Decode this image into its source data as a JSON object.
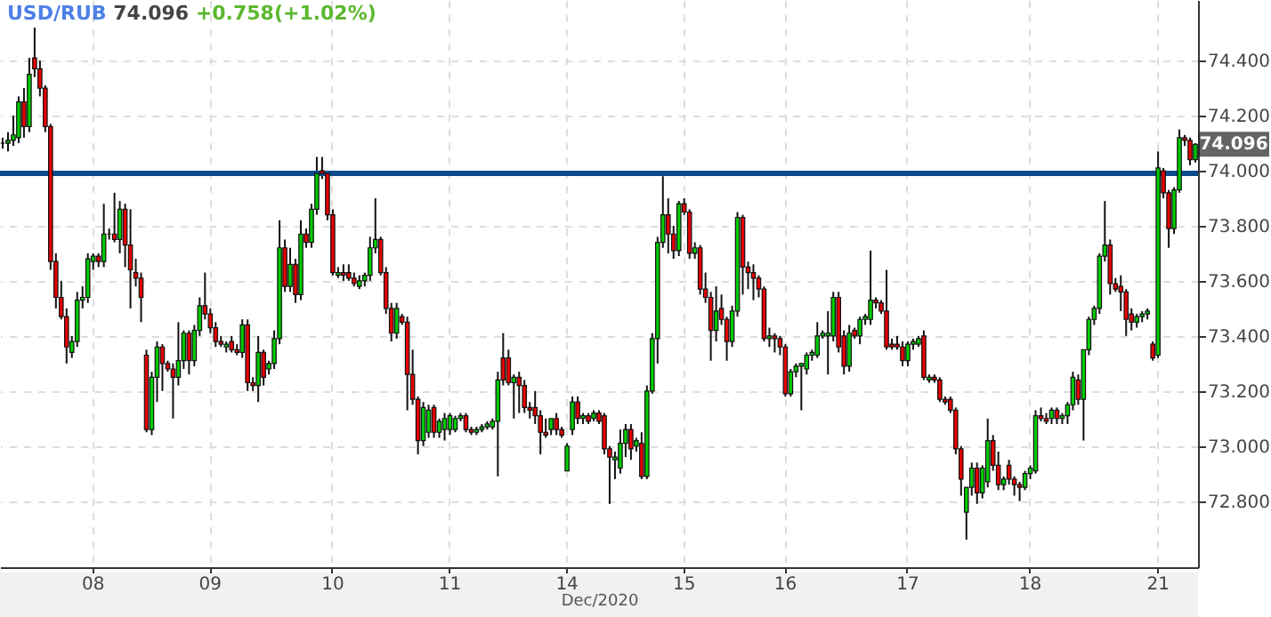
{
  "chart_data": {
    "type": "candlestick",
    "title": "USD/RUB",
    "subtitle": "74.096 +0.758(+1.02%)",
    "xlabel": "Dec/2020",
    "categories": [
      null,
      null,
      null,
      null,
      null,
      null,
      null,
      null,
      null,
      null,
      null,
      null,
      null,
      null,
      null,
      null,
      null,
      "08",
      null,
      null,
      null,
      null,
      null,
      null,
      null,
      null,
      null,
      null,
      null,
      null,
      null,
      null,
      null,
      null,
      null,
      null,
      null,
      null,
      null,
      "09",
      null,
      null,
      null,
      null,
      null,
      null,
      null,
      null,
      null,
      null,
      null,
      null,
      null,
      null,
      null,
      null,
      null,
      null,
      null,
      null,
      null,
      null,
      "10",
      null,
      null,
      null,
      null,
      null,
      null,
      null,
      null,
      null,
      null,
      null,
      null,
      null,
      null,
      null,
      null,
      null,
      null,
      null,
      null,
      null,
      "11",
      null,
      null,
      null,
      null,
      null,
      null,
      null,
      null,
      null,
      null,
      null,
      null,
      null,
      null,
      null,
      null,
      null,
      null,
      null,
      null,
      null,
      "14",
      null,
      null,
      null,
      null,
      null,
      null,
      null,
      null,
      null,
      null,
      null,
      null,
      null,
      null,
      null,
      null,
      null,
      null,
      null,
      null,
      null,
      "15",
      null,
      null,
      null,
      null,
      null,
      null,
      null,
      null,
      null,
      null,
      null,
      null,
      null,
      null,
      null,
      null,
      null,
      null,
      "16",
      null,
      null,
      null,
      null,
      null,
      null,
      null,
      null,
      null,
      null,
      null,
      null,
      null,
      null,
      null,
      null,
      null,
      null,
      null,
      null,
      null,
      null,
      "17",
      null,
      null,
      null,
      null,
      null,
      null,
      null,
      null,
      null,
      null,
      null,
      null,
      null,
      null,
      null,
      null,
      null,
      null,
      null,
      null,
      null,
      null,
      "18",
      null,
      null,
      null,
      null,
      null,
      null,
      null,
      null,
      null,
      null,
      null,
      null,
      null,
      null,
      null,
      null,
      null,
      null,
      null,
      null,
      null,
      null,
      null,
      "21",
      null,
      null,
      null,
      null,
      null,
      null,
      null
    ],
    "ohlc": [
      [
        74.1,
        74.12,
        74.08,
        74.1
      ],
      [
        74.1,
        74.14,
        74.07,
        74.11
      ],
      [
        74.11,
        74.2,
        74.09,
        74.13
      ],
      [
        74.12,
        74.27,
        74.1,
        74.25
      ],
      [
        74.25,
        74.3,
        74.12,
        74.16
      ],
      [
        74.16,
        74.41,
        74.14,
        74.35
      ],
      [
        74.41,
        74.52,
        74.34,
        74.37
      ],
      [
        74.37,
        74.4,
        74.27,
        74.3
      ],
      [
        74.3,
        74.31,
        74.14,
        74.16
      ],
      [
        74.16,
        74.17,
        73.64,
        73.67
      ],
      [
        73.67,
        73.7,
        73.5,
        73.54
      ],
      [
        73.54,
        73.6,
        73.46,
        73.47
      ],
      [
        73.47,
        73.5,
        73.3,
        73.36
      ],
      [
        73.34,
        73.4,
        73.32,
        73.38
      ],
      [
        73.38,
        73.56,
        73.36,
        73.53
      ],
      [
        73.53,
        73.58,
        73.5,
        73.54
      ],
      [
        73.54,
        73.7,
        73.52,
        73.68
      ],
      [
        73.67,
        73.7,
        73.64,
        73.69
      ],
      [
        73.69,
        73.7,
        73.65,
        73.67
      ],
      [
        73.67,
        73.88,
        73.65,
        73.77
      ],
      [
        73.77,
        73.79,
        73.75,
        73.77
      ],
      [
        73.77,
        73.92,
        73.74,
        73.75
      ],
      [
        73.75,
        73.89,
        73.7,
        73.86
      ],
      [
        73.86,
        73.88,
        73.65,
        73.73
      ],
      [
        73.73,
        73.86,
        73.5,
        73.64
      ],
      [
        73.63,
        73.68,
        73.58,
        73.61
      ],
      [
        73.61,
        73.63,
        73.45,
        73.54
      ],
      [
        73.33,
        73.35,
        73.05,
        73.06
      ],
      [
        73.06,
        73.27,
        73.04,
        73.25
      ],
      [
        73.25,
        73.38,
        73.16,
        73.36
      ],
      [
        73.36,
        73.37,
        73.2,
        73.3
      ],
      [
        73.3,
        73.31,
        73.27,
        73.28
      ],
      [
        73.28,
        73.3,
        73.1,
        73.25
      ],
      [
        73.25,
        73.45,
        73.22,
        73.31
      ],
      [
        73.31,
        73.42,
        73.28,
        73.41
      ],
      [
        73.41,
        73.42,
        73.26,
        73.31
      ],
      [
        73.31,
        73.44,
        73.29,
        73.42
      ],
      [
        73.42,
        73.54,
        73.4,
        73.51
      ],
      [
        73.51,
        73.63,
        73.46,
        73.48
      ],
      [
        73.48,
        73.5,
        73.41,
        73.43
      ],
      [
        73.43,
        73.45,
        73.36,
        73.38
      ],
      [
        73.38,
        73.4,
        73.36,
        73.37
      ],
      [
        73.36,
        73.38,
        73.34,
        73.37
      ],
      [
        73.38,
        73.4,
        73.34,
        73.35
      ],
      [
        73.35,
        73.37,
        73.33,
        73.34
      ],
      [
        73.34,
        73.46,
        73.32,
        73.44
      ],
      [
        73.44,
        73.46,
        73.2,
        73.23
      ],
      [
        73.23,
        73.25,
        73.2,
        73.22
      ],
      [
        73.22,
        73.4,
        73.16,
        73.34
      ],
      [
        73.34,
        73.35,
        73.22,
        73.25
      ],
      [
        73.28,
        73.31,
        73.26,
        73.3
      ],
      [
        73.3,
        73.42,
        73.28,
        73.39
      ],
      [
        73.39,
        73.82,
        73.37,
        73.72
      ],
      [
        73.72,
        73.75,
        73.56,
        73.58
      ],
      [
        73.58,
        73.72,
        73.56,
        73.66
      ],
      [
        73.66,
        73.68,
        73.52,
        73.55
      ],
      [
        73.55,
        73.82,
        73.53,
        73.77
      ],
      [
        73.77,
        73.79,
        73.72,
        73.74
      ],
      [
        73.74,
        73.88,
        73.72,
        73.86
      ],
      [
        73.86,
        74.05,
        73.84,
        73.99
      ],
      [
        74.0,
        74.05,
        73.97,
        73.99
      ],
      [
        73.99,
        74.0,
        73.82,
        73.84
      ],
      [
        73.84,
        73.86,
        73.62,
        73.63
      ],
      [
        73.62,
        73.65,
        73.61,
        73.63
      ],
      [
        73.63,
        73.66,
        73.6,
        73.62
      ],
      [
        73.63,
        73.66,
        73.6,
        73.61
      ],
      [
        73.61,
        73.63,
        73.58,
        73.59
      ],
      [
        73.58,
        73.62,
        73.57,
        73.6
      ],
      [
        73.6,
        73.63,
        73.58,
        73.62
      ],
      [
        73.62,
        73.76,
        73.6,
        73.72
      ],
      [
        73.72,
        73.9,
        73.7,
        73.75
      ],
      [
        73.75,
        73.76,
        73.62,
        73.63
      ],
      [
        73.63,
        73.65,
        73.48,
        73.5
      ],
      [
        73.5,
        73.52,
        73.38,
        73.41
      ],
      [
        73.41,
        73.52,
        73.39,
        73.5
      ],
      [
        73.47,
        73.48,
        73.44,
        73.45
      ],
      [
        73.45,
        73.47,
        73.13,
        73.26
      ],
      [
        73.26,
        73.35,
        73.15,
        73.17
      ],
      [
        73.17,
        73.18,
        72.97,
        73.02
      ],
      [
        73.02,
        73.16,
        73.0,
        73.14
      ],
      [
        73.05,
        73.15,
        73.03,
        73.13
      ],
      [
        73.14,
        73.15,
        73.03,
        73.05
      ],
      [
        73.05,
        73.1,
        73.03,
        73.09
      ],
      [
        73.06,
        73.12,
        73.02,
        73.1
      ],
      [
        73.06,
        73.12,
        73.04,
        73.11
      ],
      [
        73.06,
        73.11,
        73.05,
        73.1
      ],
      [
        73.1,
        73.12,
        73.09,
        73.11
      ],
      [
        73.11,
        73.12,
        73.05,
        73.06
      ],
      [
        73.06,
        73.07,
        73.04,
        73.05
      ],
      [
        73.05,
        73.07,
        73.04,
        73.06
      ],
      [
        73.06,
        73.08,
        73.05,
        73.07
      ],
      [
        73.07,
        73.09,
        73.06,
        73.08
      ],
      [
        73.07,
        73.1,
        73.06,
        73.09
      ],
      [
        73.09,
        73.27,
        72.89,
        73.24
      ],
      [
        73.32,
        73.41,
        73.22,
        73.24
      ],
      [
        73.32,
        73.35,
        73.22,
        73.23
      ],
      [
        73.23,
        73.26,
        73.1,
        73.25
      ],
      [
        73.25,
        73.27,
        73.12,
        73.22
      ],
      [
        73.22,
        73.24,
        73.12,
        73.14
      ],
      [
        73.14,
        73.16,
        73.1,
        73.13
      ],
      [
        73.14,
        73.2,
        73.08,
        73.11
      ],
      [
        73.11,
        73.13,
        72.97,
        73.05
      ],
      [
        73.05,
        73.1,
        73.03,
        73.04
      ],
      [
        73.06,
        73.1,
        73.04,
        73.1
      ],
      [
        73.1,
        73.12,
        73.04,
        73.06
      ],
      [
        73.06,
        73.07,
        73.03,
        73.04
      ],
      [
        72.91,
        73.01,
        72.91,
        73.0
      ],
      [
        73.06,
        73.18,
        73.04,
        73.16
      ],
      [
        73.16,
        73.18,
        73.08,
        73.1
      ],
      [
        73.1,
        73.12,
        73.08,
        73.11
      ],
      [
        73.11,
        73.12,
        73.08,
        73.09
      ],
      [
        73.1,
        73.13,
        73.09,
        73.12
      ],
      [
        73.12,
        73.13,
        73.08,
        73.09
      ],
      [
        73.11,
        73.12,
        72.97,
        72.99
      ],
      [
        72.99,
        73.0,
        72.79,
        72.96
      ],
      [
        72.95,
        72.98,
        72.88,
        72.96
      ],
      [
        72.92,
        73.06,
        72.9,
        73.01
      ],
      [
        73.01,
        73.08,
        72.96,
        73.06
      ],
      [
        73.06,
        73.08,
        72.95,
        72.99
      ],
      [
        73.0,
        73.03,
        72.98,
        73.02
      ],
      [
        73.01,
        73.05,
        72.88,
        72.89
      ],
      [
        72.89,
        73.22,
        72.88,
        73.2
      ],
      [
        73.2,
        73.41,
        73.19,
        73.39
      ],
      [
        73.39,
        73.76,
        73.3,
        73.74
      ],
      [
        73.74,
        73.98,
        73.72,
        73.84
      ],
      [
        73.84,
        73.9,
        73.7,
        73.77
      ],
      [
        73.77,
        73.8,
        73.68,
        73.71
      ],
      [
        73.71,
        73.89,
        73.69,
        73.88
      ],
      [
        73.88,
        73.9,
        73.84,
        73.85
      ],
      [
        73.85,
        73.86,
        73.68,
        73.7
      ],
      [
        73.7,
        73.74,
        73.68,
        73.72
      ],
      [
        73.72,
        73.73,
        73.55,
        73.57
      ],
      [
        73.57,
        73.63,
        73.52,
        73.54
      ],
      [
        73.54,
        73.56,
        73.31,
        73.42
      ],
      [
        73.42,
        73.58,
        73.38,
        73.49
      ],
      [
        73.5,
        73.55,
        73.44,
        73.46
      ],
      [
        73.46,
        73.47,
        73.31,
        73.38
      ],
      [
        73.38,
        73.51,
        73.36,
        73.49
      ],
      [
        73.49,
        73.85,
        73.47,
        73.83
      ],
      [
        73.83,
        73.84,
        73.55,
        73.65
      ],
      [
        73.65,
        73.67,
        73.57,
        73.63
      ],
      [
        73.63,
        73.66,
        73.53,
        73.61
      ],
      [
        73.61,
        73.62,
        73.54,
        73.57
      ],
      [
        73.57,
        73.58,
        73.38,
        73.39
      ],
      [
        73.39,
        73.43,
        73.36,
        73.4
      ],
      [
        73.4,
        73.41,
        73.34,
        73.39
      ],
      [
        73.39,
        73.4,
        73.33,
        73.36
      ],
      [
        73.36,
        73.37,
        73.18,
        73.19
      ],
      [
        73.19,
        73.28,
        73.18,
        73.27
      ],
      [
        73.27,
        73.3,
        73.25,
        73.29
      ],
      [
        73.29,
        73.3,
        73.13,
        73.3
      ],
      [
        73.28,
        73.34,
        73.26,
        73.33
      ],
      [
        73.33,
        73.35,
        73.31,
        73.34
      ],
      [
        73.33,
        73.45,
        73.32,
        73.4
      ],
      [
        73.4,
        73.42,
        73.39,
        73.41
      ],
      [
        73.4,
        73.49,
        73.26,
        73.41
      ],
      [
        73.4,
        73.56,
        73.38,
        73.54
      ],
      [
        73.54,
        73.56,
        73.34,
        73.36
      ],
      [
        73.4,
        73.42,
        73.26,
        73.29
      ],
      [
        73.29,
        73.44,
        73.27,
        73.41
      ],
      [
        73.42,
        73.43,
        73.39,
        73.4
      ],
      [
        73.4,
        73.47,
        73.37,
        73.46
      ],
      [
        73.46,
        73.48,
        73.44,
        73.47
      ],
      [
        73.46,
        73.71,
        73.44,
        73.53
      ],
      [
        73.53,
        73.54,
        73.5,
        73.52
      ],
      [
        73.52,
        73.53,
        73.48,
        73.49
      ],
      [
        73.49,
        73.64,
        73.35,
        73.36
      ],
      [
        73.37,
        73.39,
        73.35,
        73.36
      ],
      [
        73.37,
        73.4,
        73.35,
        73.36
      ],
      [
        73.36,
        73.38,
        73.29,
        73.31
      ],
      [
        73.31,
        73.38,
        73.29,
        73.37
      ],
      [
        73.37,
        73.39,
        73.35,
        73.38
      ],
      [
        73.37,
        73.4,
        73.36,
        73.39
      ],
      [
        73.4,
        73.42,
        73.24,
        73.25
      ],
      [
        73.24,
        73.26,
        73.23,
        73.25
      ],
      [
        73.25,
        73.26,
        73.23,
        73.24
      ],
      [
        73.24,
        73.25,
        73.16,
        73.17
      ],
      [
        73.17,
        73.18,
        73.15,
        73.16
      ],
      [
        73.17,
        73.18,
        73.12,
        73.13
      ],
      [
        73.13,
        73.14,
        72.97,
        72.99
      ],
      [
        72.99,
        73.0,
        72.82,
        72.88
      ],
      [
        72.76,
        72.85,
        72.66,
        72.85
      ],
      [
        72.85,
        72.94,
        72.82,
        72.92
      ],
      [
        72.92,
        72.94,
        72.79,
        72.83
      ],
      [
        72.83,
        72.93,
        72.81,
        72.92
      ],
      [
        72.87,
        73.1,
        72.85,
        73.02
      ],
      [
        73.02,
        73.04,
        72.91,
        72.93
      ],
      [
        72.93,
        72.98,
        72.84,
        72.86
      ],
      [
        72.86,
        72.89,
        72.84,
        72.88
      ],
      [
        72.93,
        72.95,
        72.86,
        72.88
      ],
      [
        72.88,
        72.89,
        72.82,
        72.86
      ],
      [
        72.86,
        72.87,
        72.8,
        72.85
      ],
      [
        72.85,
        72.91,
        72.84,
        72.9
      ],
      [
        72.9,
        72.93,
        72.88,
        72.92
      ],
      [
        72.91,
        73.13,
        72.9,
        73.11
      ],
      [
        73.11,
        73.14,
        73.09,
        73.1
      ],
      [
        73.1,
        73.12,
        73.08,
        73.09
      ],
      [
        73.1,
        73.14,
        73.08,
        73.13
      ],
      [
        73.13,
        73.14,
        73.08,
        73.1
      ],
      [
        73.1,
        73.12,
        73.08,
        73.11
      ],
      [
        73.11,
        73.16,
        73.08,
        73.15
      ],
      [
        73.15,
        73.27,
        73.13,
        73.25
      ],
      [
        73.24,
        73.26,
        73.15,
        73.17
      ],
      [
        73.17,
        73.35,
        73.02,
        73.35
      ],
      [
        73.35,
        73.47,
        73.33,
        73.46
      ],
      [
        73.46,
        73.51,
        73.44,
        73.5
      ],
      [
        73.5,
        73.7,
        73.48,
        73.69
      ],
      [
        73.69,
        73.89,
        73.67,
        73.73
      ],
      [
        73.73,
        73.75,
        73.55,
        73.59
      ],
      [
        73.59,
        73.61,
        73.56,
        73.57
      ],
      [
        73.58,
        73.62,
        73.49,
        73.56
      ],
      [
        73.56,
        73.57,
        73.4,
        73.46
      ],
      [
        73.48,
        73.5,
        73.42,
        73.45
      ],
      [
        73.45,
        73.48,
        73.43,
        73.47
      ],
      [
        73.47,
        73.49,
        73.45,
        73.48
      ],
      [
        73.48,
        73.5,
        73.46,
        73.49
      ],
      [
        73.37,
        73.38,
        73.31,
        73.32
      ],
      [
        73.33,
        74.07,
        73.32,
        74.01
      ],
      [
        74.0,
        74.01,
        73.9,
        73.92
      ],
      [
        73.92,
        73.93,
        73.72,
        73.79
      ],
      [
        73.79,
        73.94,
        73.77,
        73.93
      ],
      [
        73.93,
        74.15,
        73.92,
        74.12
      ],
      [
        74.12,
        74.13,
        74.09,
        74.11
      ],
      [
        74.11,
        74.12,
        74.02,
        74.04
      ],
      [
        74.04,
        74.1,
        74.03,
        74.096
      ]
    ],
    "ylim": [
      72.56,
      74.62
    ],
    "yticks": [
      {
        "value": 72.8,
        "label": "72.800"
      },
      {
        "value": 73,
        "label": "73.000"
      },
      {
        "value": 73.2,
        "label": "73.200"
      },
      {
        "value": 73.4,
        "label": "73.400"
      },
      {
        "value": 73.6,
        "label": "73.600"
      },
      {
        "value": 73.8,
        "label": "73.800"
      },
      {
        "value": 74,
        "label": "74.000"
      },
      {
        "value": 74.2,
        "label": "74.200"
      },
      {
        "value": 74.4,
        "label": "74.400"
      }
    ],
    "grid": true,
    "ref_lines": [
      {
        "axis": "y",
        "value": 73.99,
        "color": "#0d4a8c"
      }
    ],
    "annotations": [
      {
        "text": "74.096",
        "y": 74.096
      }
    ]
  }
}
